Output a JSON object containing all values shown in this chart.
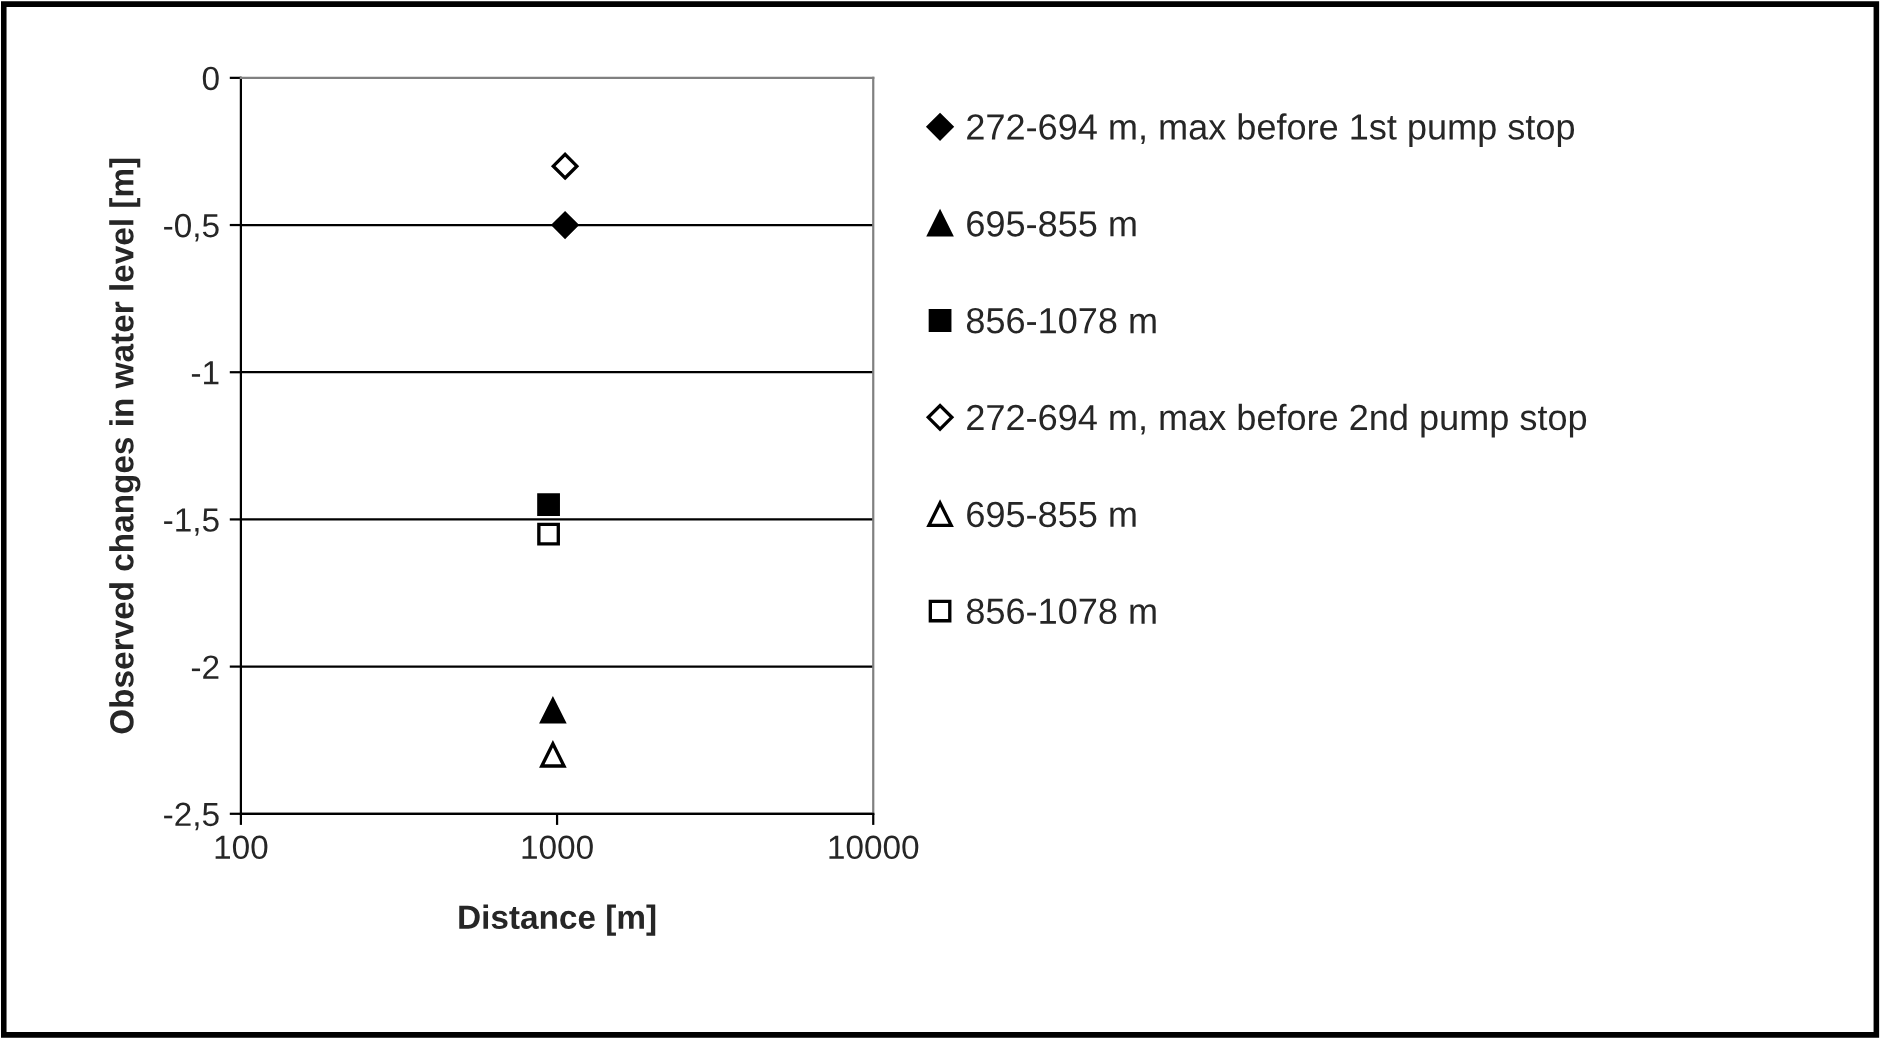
{
  "chart_data": {
    "type": "scatter",
    "xlabel": "Distance [m]",
    "ylabel": "Observed changes in water level [m]",
    "log": "x",
    "xlim": [
      100,
      10000
    ],
    "xticks": [
      100,
      1000,
      10000
    ],
    "ylim": [
      -2.5,
      0
    ],
    "yticks": [
      {
        "value": -2.5,
        "label": "-2,5"
      },
      {
        "value": -2,
        "label": "-2"
      },
      {
        "value": -1.5,
        "label": "-1,5"
      },
      {
        "value": -1,
        "label": "-1"
      },
      {
        "value": -0.5,
        "label": "-0,5"
      },
      {
        "value": 0,
        "label": "0"
      }
    ],
    "grid": "y",
    "legend": "right",
    "series": [
      {
        "name": "272-694 m, max before 1st pump stop",
        "marker": "diamond",
        "color": "#000000",
        "x": [
          1060
        ],
        "values": [
          -0.5
        ]
      },
      {
        "name": "695-855 m",
        "marker": "triangle",
        "color": "#000000",
        "x": [
          970
        ],
        "values": [
          -2.15
        ]
      },
      {
        "name": "856-1078 m",
        "marker": "square",
        "color": "#000000",
        "x": [
          940
        ],
        "values": [
          -1.45
        ]
      },
      {
        "name": "272-694 m, max before 2nd pump stop",
        "marker": "diamond",
        "color": "#ffffff",
        "x": [
          1060
        ],
        "values": [
          -0.3
        ]
      },
      {
        "name": "695-855 m",
        "marker": "triangle",
        "color": "#ffffff",
        "x": [
          970
        ],
        "values": [
          -2.3
        ]
      },
      {
        "name": "856-1078 m",
        "marker": "square",
        "color": "#ffffff",
        "x": [
          940
        ],
        "values": [
          -1.55
        ]
      }
    ]
  }
}
